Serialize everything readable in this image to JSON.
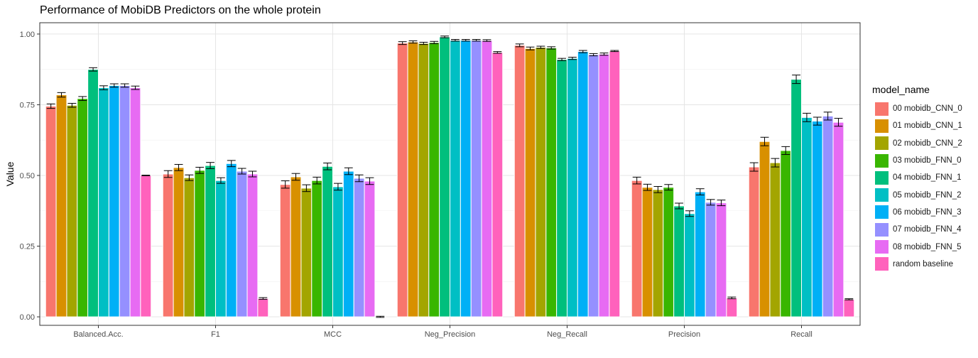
{
  "title": "Performance of MobiDB Predictors on the whole protein",
  "chart_data": {
    "type": "bar",
    "title": "Performance of MobiDB Predictors on the whole protein",
    "xlabel": "",
    "ylabel": "Value",
    "ylim": [
      -0.03,
      1.04
    ],
    "yticks": [
      "0.00",
      "0.25",
      "0.50",
      "0.75",
      "1.00"
    ],
    "grid": true,
    "legend_title": "model_name",
    "legend_position": "right",
    "categories": [
      "Balanced.Acc.",
      "F1",
      "MCC",
      "Neg_Precision",
      "Neg_Recall",
      "Precision",
      "Recall"
    ],
    "series": [
      {
        "name": "00 mobidb_CNN_0",
        "color": "#F8766D",
        "values": [
          0.745,
          0.505,
          0.468,
          0.968,
          0.96,
          0.482,
          0.53
        ],
        "errors": [
          0.008,
          0.012,
          0.013,
          0.005,
          0.005,
          0.012,
          0.015
        ]
      },
      {
        "name": "01 mobidb_CNN_1",
        "color": "#D89000",
        "values": [
          0.785,
          0.528,
          0.495,
          0.972,
          0.949,
          0.458,
          0.62
        ],
        "errors": [
          0.008,
          0.011,
          0.012,
          0.004,
          0.005,
          0.011,
          0.015
        ]
      },
      {
        "name": "02 mobidb_CNN_2",
        "color": "#A3A500",
        "values": [
          0.748,
          0.492,
          0.455,
          0.967,
          0.953,
          0.45,
          0.545
        ],
        "errors": [
          0.007,
          0.01,
          0.012,
          0.004,
          0.004,
          0.011,
          0.015
        ]
      },
      {
        "name": "03 mobidb_FNN_0",
        "color": "#39B600",
        "values": [
          0.772,
          0.518,
          0.482,
          0.97,
          0.951,
          0.458,
          0.588
        ],
        "errors": [
          0.007,
          0.011,
          0.012,
          0.004,
          0.004,
          0.01,
          0.014
        ]
      },
      {
        "name": "04 mobidb_FNN_1",
        "color": "#00BF7D",
        "values": [
          0.875,
          0.535,
          0.532,
          0.99,
          0.91,
          0.392,
          0.84
        ],
        "errors": [
          0.006,
          0.011,
          0.012,
          0.003,
          0.004,
          0.01,
          0.015
        ]
      },
      {
        "name": "05 mobidb_FNN_2",
        "color": "#00BFC4",
        "values": [
          0.81,
          0.482,
          0.46,
          0.978,
          0.914,
          0.365,
          0.705
        ],
        "errors": [
          0.007,
          0.01,
          0.012,
          0.003,
          0.004,
          0.01,
          0.015
        ]
      },
      {
        "name": "06 mobidb_FNN_3",
        "color": "#00B0F6",
        "values": [
          0.818,
          0.542,
          0.515,
          0.978,
          0.938,
          0.442,
          0.692
        ],
        "errors": [
          0.006,
          0.011,
          0.012,
          0.003,
          0.004,
          0.011,
          0.014
        ]
      },
      {
        "name": "07 mobidb_FNN_4",
        "color": "#9590FF",
        "values": [
          0.818,
          0.515,
          0.49,
          0.978,
          0.927,
          0.405,
          0.71
        ],
        "errors": [
          0.006,
          0.01,
          0.012,
          0.003,
          0.004,
          0.01,
          0.014
        ]
      },
      {
        "name": "08 mobidb_FNN_5",
        "color": "#E76BF3",
        "values": [
          0.81,
          0.505,
          0.48,
          0.977,
          0.929,
          0.403,
          0.688
        ],
        "errors": [
          0.006,
          0.01,
          0.012,
          0.003,
          0.004,
          0.01,
          0.014
        ]
      },
      {
        "name": "random baseline",
        "color": "#FF62BC",
        "values": [
          0.5,
          0.065,
          0.0,
          0.935,
          0.94,
          0.067,
          0.062
        ],
        "errors": [
          0.001,
          0.003,
          0.002,
          0.003,
          0.002,
          0.003,
          0.002
        ]
      }
    ]
  }
}
